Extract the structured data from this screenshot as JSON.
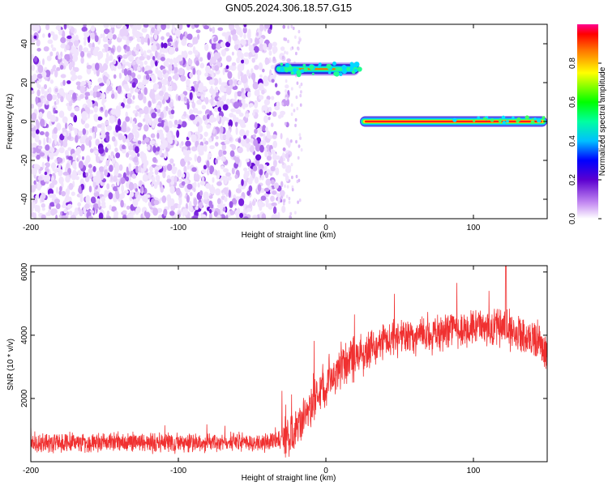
{
  "title": "GN05.2024.306.18.57.G15",
  "chart_data": [
    {
      "type": "heatmap",
      "xlabel": "Height of straight line (km)",
      "ylabel": "Frequency (Hz)",
      "xlim": [
        -200,
        150
      ],
      "ylim": [
        -50,
        50
      ],
      "x_ticks": [
        "-200",
        "-100",
        "0",
        "100"
      ],
      "x_tick_values": [
        -200,
        -100,
        0,
        100
      ],
      "y_ticks": [
        "40",
        "20",
        "0",
        "-20",
        "-40"
      ],
      "y_tick_values": [
        40,
        20,
        0,
        -20,
        -40
      ],
      "colorbar": {
        "label": "Normalized spectral amplitude",
        "range": [
          0,
          1
        ],
        "ticks": [
          "0.0",
          "0.2",
          "0.4",
          "0.6",
          "0.8"
        ],
        "tick_values": [
          0,
          0.2,
          0.4,
          0.6,
          0.8
        ]
      },
      "features": {
        "noise_region_x": [
          -200,
          -30
        ],
        "upper_trace": {
          "x": [
            -35,
            23
          ],
          "frequency": 27
        },
        "lower_trace": {
          "x": [
            23,
            150
          ],
          "frequency": 0
        }
      }
    },
    {
      "type": "line",
      "xlabel": "Height of straight line (km)",
      "ylabel": "SNR (10 * v/v)",
      "xlim": [
        -200,
        150
      ],
      "ylim": [
        0,
        6200
      ],
      "color": "#f03030",
      "x_ticks": [
        "-200",
        "-100",
        "0",
        "100"
      ],
      "x_tick_values": [
        -200,
        -100,
        0,
        100
      ],
      "y_ticks": [
        "6000",
        "4000",
        "2000"
      ],
      "y_tick_values": [
        6000,
        4000,
        2000
      ],
      "trend": {
        "x": [
          -200,
          -100,
          -40,
          -25,
          -15,
          -5,
          5,
          20,
          40,
          60,
          80,
          100,
          120,
          140,
          150
        ],
        "y": [
          600,
          600,
          620,
          750,
          1400,
          2200,
          2800,
          3300,
          3800,
          4000,
          4100,
          4250,
          4200,
          3900,
          3500
        ]
      },
      "peak": {
        "x": 122,
        "y": 6200
      }
    }
  ]
}
